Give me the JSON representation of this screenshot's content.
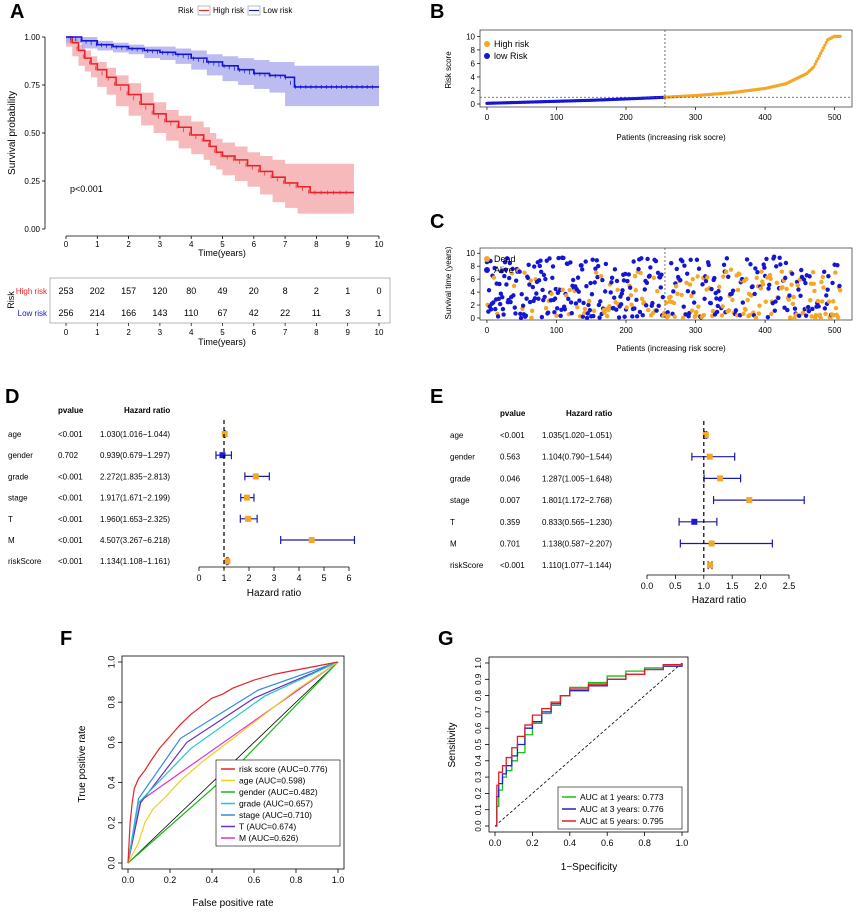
{
  "figure": {
    "panel_labels": [
      "A",
      "B",
      "C",
      "D",
      "E",
      "F",
      "G"
    ]
  },
  "chart_data": [
    {
      "id": "A",
      "type": "line",
      "title": "",
      "legend_title": "Risk",
      "legend": [
        "High risk",
        "Low risk"
      ],
      "xlabel": "Time(years)",
      "ylabel": "Survival probability",
      "xlim": [
        0,
        10
      ],
      "ylim": [
        0,
        1
      ],
      "x_ticks": [
        0,
        1,
        2,
        3,
        4,
        5,
        6,
        7,
        8,
        9,
        10
      ],
      "y_ticks": [
        "0.00",
        "0.25",
        "0.50",
        "0.75",
        "1.00"
      ],
      "annotation": "p<0.001",
      "colors": {
        "high": "#e8232a",
        "low": "#1515d6",
        "high_band": "#f4a3a6",
        "low_band": "#a6a6ec"
      },
      "series": [
        {
          "name": "High risk",
          "x": [
            0,
            0.2,
            0.4,
            0.6,
            0.8,
            1.0,
            1.3,
            1.6,
            2.0,
            2.4,
            2.8,
            3.2,
            3.6,
            4.0,
            4.4,
            4.6,
            4.8,
            5.0,
            5.4,
            5.8,
            6.2,
            6.6,
            7.0,
            7.4,
            7.8,
            8.5,
            9.2
          ],
          "y": [
            1.0,
            0.97,
            0.93,
            0.89,
            0.86,
            0.83,
            0.79,
            0.75,
            0.7,
            0.65,
            0.6,
            0.56,
            0.53,
            0.49,
            0.46,
            0.43,
            0.4,
            0.38,
            0.36,
            0.33,
            0.3,
            0.27,
            0.24,
            0.22,
            0.19,
            0.19,
            0.19
          ],
          "lower": [
            1.0,
            0.95,
            0.9,
            0.85,
            0.82,
            0.79,
            0.74,
            0.7,
            0.64,
            0.59,
            0.54,
            0.5,
            0.46,
            0.42,
            0.39,
            0.36,
            0.33,
            0.31,
            0.28,
            0.25,
            0.22,
            0.18,
            0.14,
            0.11,
            0.08,
            0.08,
            0.08
          ],
          "upper": [
            1.0,
            0.99,
            0.96,
            0.93,
            0.9,
            0.87,
            0.84,
            0.8,
            0.76,
            0.71,
            0.66,
            0.62,
            0.59,
            0.56,
            0.53,
            0.5,
            0.47,
            0.45,
            0.43,
            0.4,
            0.38,
            0.36,
            0.34,
            0.34,
            0.34,
            0.34,
            0.34
          ]
        },
        {
          "name": "Low risk",
          "x": [
            0,
            0.5,
            1.0,
            1.5,
            2.0,
            2.5,
            3.0,
            3.5,
            4.0,
            4.5,
            5.0,
            5.5,
            6.0,
            6.5,
            7.0,
            7.3,
            7.7,
            8.5,
            9.5,
            10.0
          ],
          "y": [
            1.0,
            0.98,
            0.96,
            0.95,
            0.94,
            0.93,
            0.92,
            0.91,
            0.89,
            0.87,
            0.85,
            0.83,
            0.81,
            0.8,
            0.79,
            0.74,
            0.74,
            0.74,
            0.74,
            0.74
          ],
          "lower": [
            1.0,
            0.97,
            0.94,
            0.93,
            0.92,
            0.91,
            0.89,
            0.88,
            0.86,
            0.83,
            0.8,
            0.77,
            0.75,
            0.73,
            0.71,
            0.64,
            0.64,
            0.64,
            0.64,
            0.64
          ],
          "upper": [
            1.0,
            1.0,
            0.98,
            0.97,
            0.96,
            0.95,
            0.95,
            0.94,
            0.93,
            0.91,
            0.9,
            0.89,
            0.88,
            0.87,
            0.87,
            0.85,
            0.85,
            0.85,
            0.85,
            0.85
          ]
        }
      ],
      "risk_table": {
        "ylabel": "Risk",
        "xlabel": "Time(years)",
        "rows": [
          {
            "label": "High risk",
            "values": [
              "253",
              "202",
              "157",
              "120",
              "80",
              "49",
              "20",
              "8",
              "2",
              "1",
              "0"
            ]
          },
          {
            "label": "Low risk",
            "values": [
              "256",
              "214",
              "166",
              "143",
              "110",
              "67",
              "42",
              "22",
              "11",
              "3",
              "1"
            ]
          }
        ]
      }
    },
    {
      "id": "B",
      "type": "scatter",
      "xlabel": "Patients (increasing risk socre)",
      "ylabel": "Risk score",
      "xlim": [
        0,
        510
      ],
      "ylim": [
        0,
        10
      ],
      "x_ticks": [
        0,
        100,
        200,
        300,
        400,
        500
      ],
      "y_ticks": [
        0,
        2,
        4,
        6,
        8,
        10
      ],
      "cutoff_index": 256,
      "cutoff_value": 1.0,
      "legend": [
        "High risk",
        "low Risk"
      ],
      "colors": {
        "high": "#f5a623",
        "low": "#1515d6"
      },
      "curve_knots_x": [
        0,
        50,
        100,
        150,
        200,
        256,
        300,
        350,
        400,
        430,
        460,
        470,
        480,
        490,
        500,
        510
      ],
      "curve_knots_y": [
        0.1,
        0.25,
        0.4,
        0.55,
        0.75,
        1.0,
        1.25,
        1.65,
        2.3,
        3.0,
        4.5,
        5.5,
        7.5,
        9.5,
        10.0,
        10.0
      ]
    },
    {
      "id": "C",
      "type": "scatter",
      "xlabel": "Patients (increasing risk socre)",
      "ylabel": "Survival time (years)",
      "xlim": [
        0,
        510
      ],
      "ylim": [
        0,
        10
      ],
      "x_ticks": [
        0,
        100,
        200,
        300,
        400,
        500
      ],
      "y_ticks": [
        0,
        2,
        4,
        6,
        8,
        10
      ],
      "cutoff_index": 256,
      "legend": [
        "Dead",
        "Alive"
      ],
      "colors": {
        "dead": "#f5a623",
        "alive": "#1515d6"
      },
      "n_points": 509
    },
    {
      "id": "D",
      "type": "forest",
      "col_headers": [
        "pvalue",
        "Hazard ratio"
      ],
      "xlabel": "Hazard ratio",
      "xlim": [
        0,
        6
      ],
      "x_ticks": [
        0,
        1,
        2,
        3,
        4,
        5,
        6
      ],
      "reference": 1,
      "rows": [
        {
          "label": "age",
          "p": "<0.001",
          "hr_text": "1.030(1.016−1.044)",
          "hr": 1.03,
          "lo": 1.016,
          "hi": 1.044
        },
        {
          "label": "gender",
          "p": "0.702",
          "hr_text": "0.939(0.679−1.297)",
          "hr": 0.939,
          "lo": 0.679,
          "hi": 1.297
        },
        {
          "label": "grade",
          "p": "<0.001",
          "hr_text": "2.272(1.835−2.813)",
          "hr": 2.272,
          "lo": 1.835,
          "hi": 2.813
        },
        {
          "label": "stage",
          "p": "<0.001",
          "hr_text": "1.917(1.671−2.199)",
          "hr": 1.917,
          "lo": 1.671,
          "hi": 2.199
        },
        {
          "label": "T",
          "p": "<0.001",
          "hr_text": "1.960(1.653−2.325)",
          "hr": 1.96,
          "lo": 1.653,
          "hi": 2.325
        },
        {
          "label": "M",
          "p": "<0.001",
          "hr_text": "4.507(3.267−6.218)",
          "hr": 4.507,
          "lo": 3.267,
          "hi": 6.218
        },
        {
          "label": "riskScore",
          "p": "<0.001",
          "hr_text": "1.134(1.108−1.161)",
          "hr": 1.134,
          "lo": 1.108,
          "hi": 1.161
        }
      ]
    },
    {
      "id": "E",
      "type": "forest",
      "col_headers": [
        "pvalue",
        "Hazard ratio"
      ],
      "xlabel": "Hazard ratio",
      "xlim": [
        0,
        2.5
      ],
      "x_ticks": [
        "0.0",
        "0.5",
        "1.0",
        "1.5",
        "2.0",
        "2.5"
      ],
      "reference": 1,
      "rows": [
        {
          "label": "age",
          "p": "<0.001",
          "hr_text": "1.035(1.020−1.051)",
          "hr": 1.035,
          "lo": 1.02,
          "hi": 1.051
        },
        {
          "label": "gender",
          "p": "0.563",
          "hr_text": "1.104(0.790−1.544)",
          "hr": 1.104,
          "lo": 0.79,
          "hi": 1.544
        },
        {
          "label": "grade",
          "p": "0.046",
          "hr_text": "1.287(1.005−1.648)",
          "hr": 1.287,
          "lo": 1.005,
          "hi": 1.648
        },
        {
          "label": "stage",
          "p": "0.007",
          "hr_text": "1.801(1.172−2.768)",
          "hr": 1.801,
          "lo": 1.172,
          "hi": 2.768
        },
        {
          "label": "T",
          "p": "0.359",
          "hr_text": "0.833(0.565−1.230)",
          "hr": 0.833,
          "lo": 0.565,
          "hi": 1.23
        },
        {
          "label": "M",
          "p": "0.701",
          "hr_text": "1.138(0.587−2.207)",
          "hr": 1.138,
          "lo": 0.587,
          "hi": 2.207
        },
        {
          "label": "riskScore",
          "p": "<0.001",
          "hr_text": "1.110(1.077−1.144)",
          "hr": 1.11,
          "lo": 1.077,
          "hi": 1.144
        }
      ]
    },
    {
      "id": "F",
      "type": "line",
      "xlabel": "False positive rate",
      "ylabel": "True positive rate",
      "xlim": [
        0,
        1
      ],
      "ylim": [
        0,
        1
      ],
      "x_ticks": [
        "0.0",
        "0.2",
        "0.4",
        "0.6",
        "0.8",
        "1.0"
      ],
      "y_ticks": [
        "0.0",
        "0.2",
        "0.4",
        "0.6",
        "0.8",
        "1.0"
      ],
      "series": [
        {
          "name": "risk score (AUC=0.776)",
          "color": "#e8232a",
          "x": [
            0,
            0.01,
            0.02,
            0.03,
            0.05,
            0.08,
            0.11,
            0.15,
            0.2,
            0.25,
            0.3,
            0.35,
            0.4,
            0.45,
            0.5,
            0.55,
            0.6,
            0.7,
            0.8,
            0.9,
            1.0
          ],
          "y": [
            0,
            0.2,
            0.3,
            0.37,
            0.42,
            0.46,
            0.51,
            0.57,
            0.63,
            0.69,
            0.74,
            0.78,
            0.82,
            0.84,
            0.87,
            0.89,
            0.91,
            0.94,
            0.96,
            0.98,
            1.0
          ]
        },
        {
          "name": "age (AUC=0.598)",
          "color": "#e8d21d",
          "x": [
            0,
            0.05,
            0.08,
            0.12,
            0.18,
            0.25,
            0.35,
            0.5,
            0.65,
            0.8,
            1.0
          ],
          "y": [
            0,
            0.1,
            0.2,
            0.27,
            0.33,
            0.41,
            0.5,
            0.62,
            0.74,
            0.86,
            1.0
          ]
        },
        {
          "name": "gender (AUC=0.482)",
          "color": "#18b818",
          "x": [
            0,
            0.5,
            1.0
          ],
          "y": [
            0,
            0.46,
            1.0
          ]
        },
        {
          "name": "grade (AUC=0.657)",
          "color": "#1ec8c8",
          "x": [
            0,
            0.05,
            0.3,
            0.65,
            1.0
          ],
          "y": [
            0,
            0.3,
            0.57,
            0.83,
            1.0
          ]
        },
        {
          "name": "stage (AUC=0.710)",
          "color": "#2d8ed8",
          "x": [
            0,
            0.05,
            0.25,
            0.62,
            1.0
          ],
          "y": [
            0,
            0.32,
            0.62,
            0.86,
            1.0
          ]
        },
        {
          "name": "T (AUC=0.674)",
          "color": "#6a2fbf",
          "x": [
            0,
            0.06,
            0.28,
            0.6,
            1.0
          ],
          "y": [
            0,
            0.3,
            0.6,
            0.82,
            1.0
          ]
        },
        {
          "name": "M (AUC=0.626)",
          "color": "#e22fd2",
          "x": [
            0,
            0.06,
            1.0
          ],
          "y": [
            0,
            0.31,
            1.0
          ]
        }
      ]
    },
    {
      "id": "G",
      "type": "line",
      "xlabel": "1−Specificity",
      "ylabel": "Sensitivity",
      "xlim": [
        0,
        1
      ],
      "ylim": [
        0,
        1
      ],
      "x_ticks": [
        "0.0",
        "0.2",
        "0.4",
        "0.6",
        "0.8",
        "1.0"
      ],
      "y_ticks": [
        "0.0",
        "0.1",
        "0.2",
        "0.3",
        "0.4",
        "0.5",
        "0.6",
        "0.7",
        "0.8",
        "0.9",
        "1.0"
      ],
      "series": [
        {
          "name": "AUC at 1 years: 0.773",
          "color": "#18c018",
          "x": [
            0,
            0.01,
            0.02,
            0.04,
            0.06,
            0.09,
            0.12,
            0.16,
            0.2,
            0.25,
            0.3,
            0.35,
            0.4,
            0.5,
            0.6,
            0.7,
            0.8,
            0.9,
            1.0
          ],
          "y": [
            0,
            0.12,
            0.22,
            0.3,
            0.34,
            0.4,
            0.45,
            0.56,
            0.63,
            0.69,
            0.74,
            0.8,
            0.85,
            0.88,
            0.92,
            0.95,
            0.97,
            0.99,
            1.0
          ]
        },
        {
          "name": "AUC at 3 years: 0.776",
          "color": "#2020d0",
          "x": [
            0,
            0.01,
            0.02,
            0.04,
            0.06,
            0.09,
            0.12,
            0.16,
            0.2,
            0.25,
            0.3,
            0.35,
            0.4,
            0.5,
            0.6,
            0.7,
            0.8,
            0.9,
            1.0
          ],
          "y": [
            0,
            0.18,
            0.26,
            0.32,
            0.37,
            0.43,
            0.5,
            0.6,
            0.64,
            0.7,
            0.75,
            0.8,
            0.83,
            0.86,
            0.9,
            0.93,
            0.96,
            0.98,
            1.0
          ]
        },
        {
          "name": "AUC at 5 years: 0.795",
          "color": "#e02020",
          "x": [
            0,
            0.01,
            0.02,
            0.04,
            0.06,
            0.09,
            0.12,
            0.16,
            0.2,
            0.25,
            0.3,
            0.35,
            0.4,
            0.5,
            0.6,
            0.7,
            0.8,
            0.9,
            1.0
          ],
          "y": [
            0,
            0.25,
            0.33,
            0.37,
            0.42,
            0.48,
            0.55,
            0.62,
            0.68,
            0.72,
            0.76,
            0.8,
            0.84,
            0.87,
            0.9,
            0.93,
            0.96,
            0.99,
            1.0
          ]
        }
      ]
    }
  ]
}
